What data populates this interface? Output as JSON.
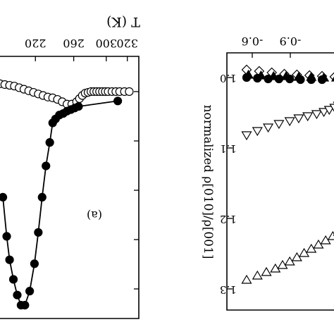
{
  "chart_data": [
    {
      "panel": "left",
      "type": "scatter",
      "panel_label": "(a)",
      "xlabel": "T (K)",
      "xticks": [
        "220",
        "260",
        "300",
        "320"
      ],
      "xlim": [
        185,
        330
      ],
      "ylim": [
        -0.25,
        3.1
      ],
      "series": [
        {
          "marker": "open-circle",
          "connected": false,
          "points": [
            [
              185,
              0.1
            ],
            [
              190,
              0.11
            ],
            [
              195,
              0.12
            ],
            [
              200,
              0.13
            ],
            [
              205,
              0.15
            ],
            [
              210,
              0.17
            ],
            [
              215,
              0.19
            ],
            [
              220,
              0.21
            ],
            [
              225,
              0.23
            ],
            [
              230,
              0.25
            ],
            [
              235,
              0.27
            ],
            [
              240,
              0.28
            ],
            [
              245,
              0.3
            ],
            [
              250,
              0.33
            ],
            [
              255,
              0.36
            ],
            [
              260,
              0.36
            ],
            [
              265,
              0.33
            ],
            [
              268,
              0.29
            ],
            [
              271,
              0.25
            ],
            [
              274,
              0.22
            ],
            [
              277,
              0.21
            ],
            [
              280,
              0.2
            ],
            [
              283,
              0.2
            ],
            [
              286,
              0.2
            ],
            [
              289,
              0.2
            ],
            [
              292,
              0.2
            ],
            [
              295,
              0.2
            ],
            [
              298,
              0.2
            ],
            [
              302,
              0.2
            ],
            [
              306,
              0.2
            ],
            [
              310,
              0.2
            ],
            [
              315,
              0.2
            ],
            [
              320,
              0.2
            ]
          ]
        },
        {
          "marker": "filled-circle",
          "connected": true,
          "points": [
            [
              188,
              1.55
            ],
            [
              192,
              2.05
            ],
            [
              195,
              2.35
            ],
            [
              199,
              2.6
            ],
            [
              203,
              2.8
            ],
            [
              207,
              2.93
            ],
            [
              211,
              2.93
            ],
            [
              216,
              2.75
            ],
            [
              221,
              2.4
            ],
            [
              225,
              2.0
            ],
            [
              229,
              1.55
            ],
            [
              233,
              1.15
            ],
            [
              237,
              0.85
            ],
            [
              240,
              0.6
            ],
            [
              243,
              0.55
            ],
            [
              247,
              0.5
            ],
            [
              251,
              0.48
            ],
            [
              255,
              0.45
            ],
            [
              259,
              0.43
            ],
            [
              263,
              0.41
            ],
            [
              267,
              0.39
            ],
            [
              308,
              0.32
            ]
          ]
        }
      ]
    },
    {
      "panel": "right",
      "type": "scatter",
      "ylabel": "normalized ρ[010]/ρ[001]",
      "xticks": [
        "-0.9",
        "-0.6"
      ],
      "yticks": [
        "1.0",
        "1.1",
        "1.2",
        "1.3"
      ],
      "ylim": [
        0.965,
        1.33
      ],
      "series": [
        {
          "marker": "open-diamond",
          "points": [
            [
              -1.05,
              0.989
            ],
            [
              -0.98,
              0.991
            ],
            [
              -0.91,
              0.993
            ],
            [
              -0.84,
              0.995
            ],
            [
              -0.77,
              0.996
            ],
            [
              -0.7,
              0.997
            ],
            [
              -0.63,
              0.998
            ],
            [
              -0.56,
              0.999
            ]
          ]
        },
        {
          "marker": "filled-triangle-up",
          "points": [
            [
              -1.04,
              0.996
            ],
            [
              -0.97,
              0.997
            ],
            [
              -0.9,
              0.998
            ],
            [
              -0.83,
              0.998
            ],
            [
              -0.76,
              0.999
            ],
            [
              -0.69,
              0.999
            ],
            [
              -0.62,
              1.0
            ],
            [
              -0.55,
              1.0
            ]
          ]
        },
        {
          "marker": "filled-circle",
          "points": [
            [
              -1.05,
              1.0
            ],
            [
              -0.99,
              1.001
            ],
            [
              -0.93,
              1.002
            ],
            [
              -0.87,
              1.002
            ],
            [
              -0.81,
              1.002
            ],
            [
              -0.75,
              1.003
            ],
            [
              -0.69,
              1.003
            ],
            [
              -0.63,
              1.003
            ]
          ]
        },
        {
          "marker": "open-triangle-down",
          "points": [
            [
              -1.05,
              1.082
            ],
            [
              -0.99,
              1.076
            ],
            [
              -0.93,
              1.071
            ],
            [
              -0.87,
              1.066
            ],
            [
              -0.81,
              1.062
            ],
            [
              -0.76,
              1.058
            ],
            [
              -0.71,
              1.055
            ],
            [
              -0.66,
              1.052
            ],
            [
              -0.62,
              1.049
            ],
            [
              -0.59,
              1.046
            ],
            [
              -0.56,
              1.043
            ],
            [
              -0.54,
              1.04
            ]
          ]
        },
        {
          "marker": "open-triangle-up",
          "points": [
            [
              -1.05,
              1.287
            ],
            [
              -0.99,
              1.281
            ],
            [
              -0.94,
              1.276
            ],
            [
              -0.89,
              1.271
            ],
            [
              -0.85,
              1.266
            ],
            [
              -0.81,
              1.261
            ],
            [
              -0.77,
              1.255
            ],
            [
              -0.73,
              1.249
            ],
            [
              -0.69,
              1.243
            ],
            [
              -0.65,
              1.237
            ],
            [
              -0.61,
              1.231
            ],
            [
              -0.57,
              1.225
            ],
            [
              -0.54,
              1.219
            ]
          ]
        }
      ]
    }
  ]
}
